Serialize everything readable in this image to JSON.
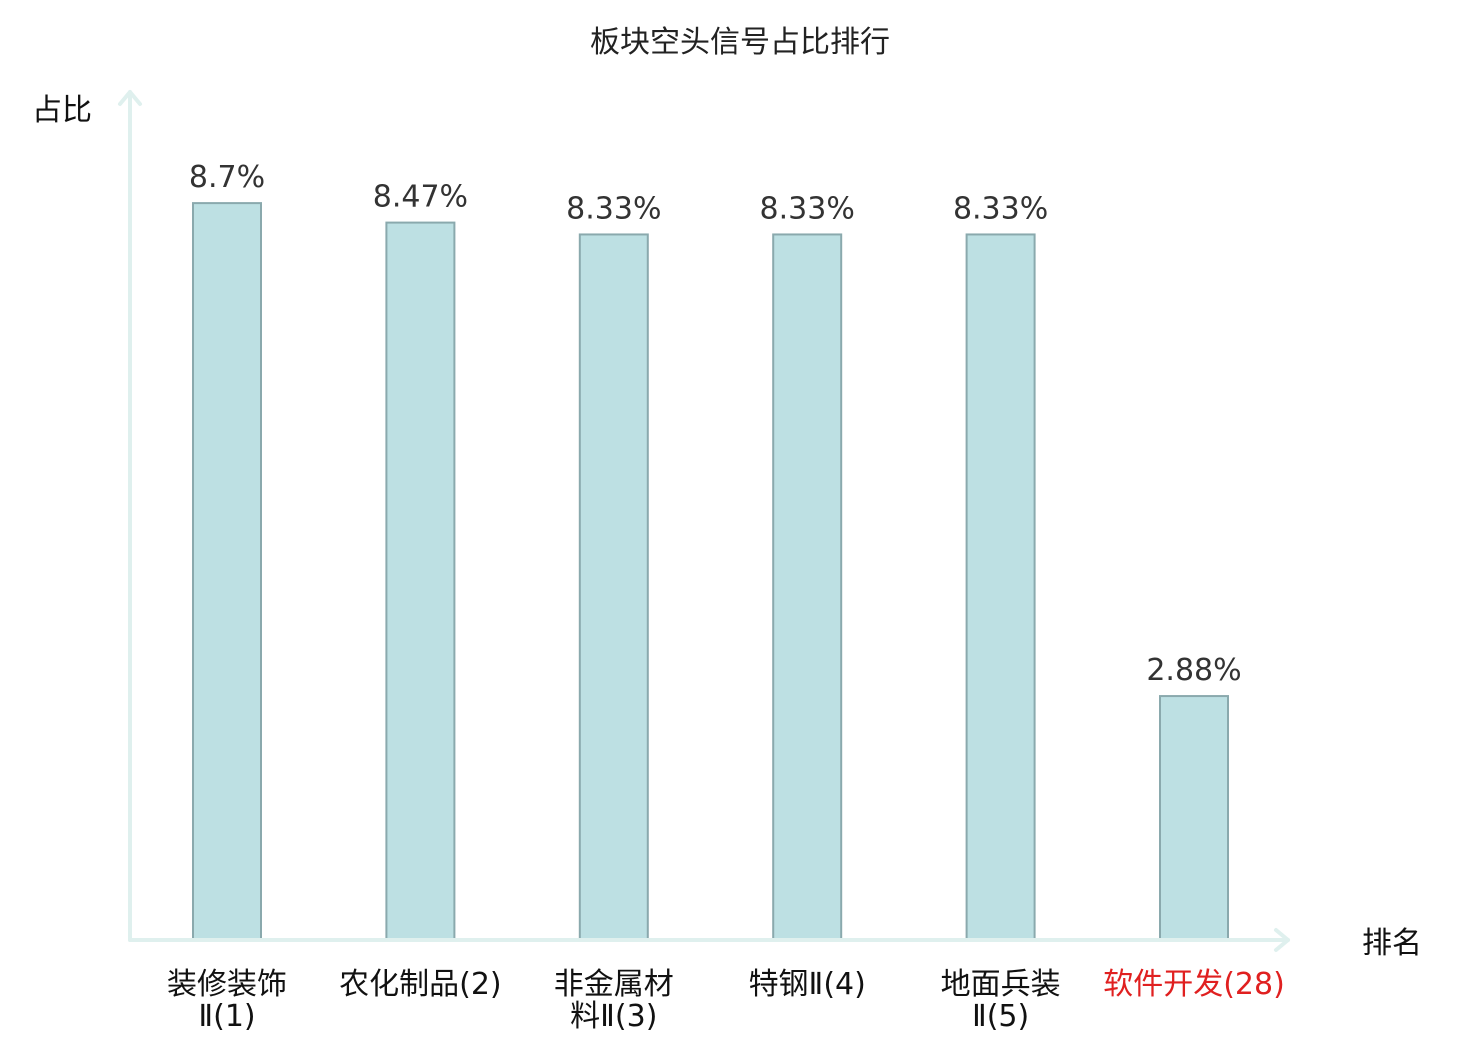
{
  "chart_data": {
    "type": "bar",
    "title": "板块空头信号占比排行",
    "ylabel": "占比",
    "xlabel": "排名",
    "ylim": [
      0,
      10
    ],
    "grid": false,
    "categories": [
      {
        "name": "装修装饰",
        "suffix": "Ⅱ(1)",
        "lines": [
          "装修装饰",
          "Ⅱ(1)"
        ]
      },
      {
        "name": "农化制品",
        "suffix": "(2)",
        "lines": [
          "农化制品(2)"
        ]
      },
      {
        "name": "非金属材",
        "suffix": "料Ⅱ(3)",
        "lines": [
          "非金属材",
          "料Ⅱ(3)"
        ]
      },
      {
        "name": "特钢",
        "suffix": "Ⅱ(4)",
        "lines": [
          "特钢Ⅱ(4)"
        ]
      },
      {
        "name": "地面兵装",
        "suffix": "Ⅱ(5)",
        "lines": [
          "地面兵装",
          "Ⅱ(5)"
        ]
      },
      {
        "name": "软件开发",
        "suffix": "(28)",
        "lines": [
          "软件开发(28)"
        ],
        "highlight": true
      }
    ],
    "values": [
      8.7,
      8.47,
      8.33,
      8.33,
      8.33,
      2.88
    ],
    "value_labels": [
      "8.7%",
      "8.47%",
      "8.33%",
      "8.33%",
      "8.33%",
      "2.88%"
    ],
    "colors": {
      "bar_fill": "#bde0e3",
      "bar_stroke": "#8aa9ad",
      "axis": "#dff0ee",
      "highlight_label": "#e02020"
    }
  }
}
